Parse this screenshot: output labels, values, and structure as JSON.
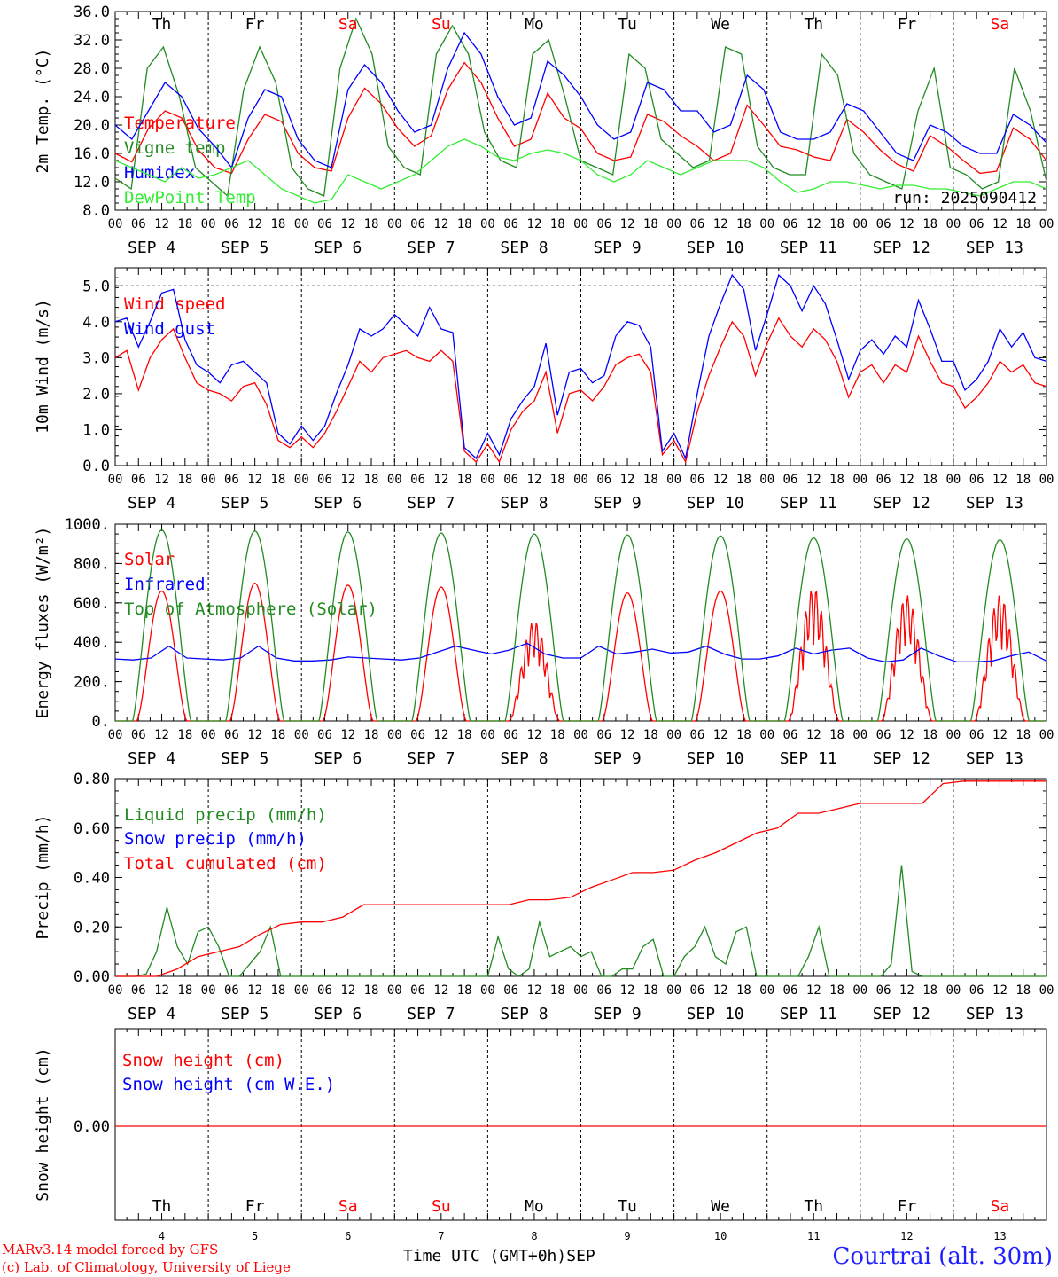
{
  "colors": {
    "temperature": "#ff0000",
    "vigne": "#228b22",
    "humidex": "#0000ff",
    "dewpoint": "#33ee33",
    "grid": "#000000"
  },
  "days": {
    "weekdays": [
      "Th",
      "Fr",
      "Sa",
      "Su",
      "Mo",
      "Tu",
      "We",
      "Th",
      "Fr",
      "Sa"
    ],
    "weekend_color": "#ff0000",
    "weekend_index": [
      2,
      3,
      9
    ],
    "dates": [
      "SEP  4",
      "SEP  5",
      "SEP  6",
      "SEP  7",
      "SEP  8",
      "SEP  9",
      "SEP 10",
      "SEP 11",
      "SEP 12",
      "SEP 13"
    ],
    "day_numbers": [
      "4",
      "5",
      "6",
      "7",
      "8",
      "9",
      "10",
      "11",
      "12",
      "13"
    ],
    "hour_ticks": [
      "00",
      "06",
      "12",
      "18"
    ],
    "last_tick": "00"
  },
  "chart_data": [
    {
      "type": "line",
      "ylabel": "2m Temp. (°C)",
      "ylim": [
        8,
        36
      ],
      "yticks": [
        "8.0",
        "12.0",
        "16.0",
        "20.0",
        "24.0",
        "28.0",
        "32.0",
        "36.0"
      ],
      "annotation": "run: 2025090412",
      "series": [
        {
          "name": "Temperature",
          "color": "#ff0000",
          "values": [
            16,
            14.8,
            19.5,
            22,
            21,
            16.5,
            14,
            13.2,
            18,
            21.5,
            20.5,
            16,
            14,
            13.5,
            21,
            25.2,
            23,
            19.5,
            17,
            18.5,
            25,
            28.8,
            26,
            21,
            17,
            18,
            24.5,
            21,
            19.5,
            16,
            15,
            15.5,
            21.5,
            20.5,
            18.5,
            17,
            15,
            16,
            22.8,
            20,
            17,
            16.5,
            15.5,
            15,
            20.8,
            19,
            16.5,
            14.5,
            13.5,
            18.5,
            17,
            15,
            13.2,
            13.5,
            19.6,
            18,
            15
          ]
        },
        {
          "name": "Vigne temp",
          "color": "#228b22",
          "values": [
            12.5,
            11,
            28,
            31,
            24,
            14,
            12,
            10,
            25,
            31,
            26,
            14,
            11,
            10,
            28,
            35,
            30,
            17,
            14,
            13,
            30,
            34,
            30,
            19,
            15,
            14,
            30,
            32,
            24,
            15,
            14,
            13,
            30,
            28,
            18,
            16,
            14,
            15,
            31,
            30,
            17,
            14,
            13,
            13,
            30,
            27,
            16,
            13,
            12,
            11,
            22,
            28,
            14,
            13,
            11,
            12,
            28,
            22,
            12
          ]
        },
        {
          "name": "Humidex",
          "color": "#0000ff",
          "values": [
            20,
            18,
            22,
            26,
            24,
            19.5,
            17,
            14,
            21,
            25,
            24,
            18,
            15,
            14,
            25,
            28.5,
            26,
            22,
            19,
            20,
            28,
            33,
            30,
            24,
            20,
            21,
            29,
            27,
            24,
            20,
            18,
            19,
            26,
            25,
            22,
            22,
            19,
            20,
            27,
            25,
            19,
            18,
            18,
            19,
            23,
            22,
            19,
            16,
            15,
            20,
            19,
            17,
            16,
            16,
            21.5,
            20,
            17.5
          ]
        },
        {
          "name": "DewPoint Temp",
          "color": "#33ee33",
          "values": [
            15,
            14,
            13,
            12,
            14,
            12.5,
            13,
            14,
            15,
            13,
            11,
            10,
            9,
            9.5,
            13,
            12,
            11,
            12,
            13,
            15,
            17,
            18,
            17,
            15.5,
            15,
            16,
            16.5,
            16,
            15,
            13,
            12,
            13,
            15,
            14,
            13,
            14,
            15,
            15,
            15,
            14,
            12,
            10.5,
            11,
            12,
            12,
            11.5,
            11,
            11.5,
            11.5,
            11,
            11,
            10.5,
            10,
            11,
            12,
            12,
            11
          ]
        }
      ]
    },
    {
      "type": "line",
      "ylabel": "10m Wind (m/s)",
      "ylim": [
        0,
        5.5
      ],
      "yticks": [
        "0.0",
        "1.0",
        "2.0",
        "3.0",
        "4.0",
        "5.0"
      ],
      "refline": 5.0,
      "series": [
        {
          "name": "Wind speed",
          "color": "#ff0000",
          "values": [
            3,
            3.2,
            2.1,
            3,
            3.5,
            3.8,
            3,
            2.3,
            2.1,
            2,
            1.8,
            2.2,
            2.3,
            1.7,
            0.7,
            0.5,
            0.8,
            0.5,
            0.9,
            1.5,
            2.2,
            2.9,
            2.6,
            3,
            3.1,
            3.2,
            3,
            2.9,
            3.2,
            2.9,
            0.4,
            0.1,
            0.6,
            0.1,
            1,
            1.5,
            1.8,
            2.6,
            0.9,
            2,
            2.1,
            1.8,
            2.2,
            2.8,
            3,
            3.1,
            2.6,
            0.3,
            0.7,
            0.1,
            1.5,
            2.5,
            3.3,
            4,
            3.6,
            2.5,
            3.4,
            4.1,
            3.6,
            3.3,
            3.8,
            3.5,
            2.9,
            1.9,
            2.6,
            2.8,
            2.3,
            2.8,
            2.6,
            3.6,
            2.9,
            2.3,
            2.2,
            1.6,
            1.9,
            2.3,
            2.9,
            2.6,
            2.8,
            2.3,
            2.2
          ]
        },
        {
          "name": "Wind gust",
          "color": "#0000ff",
          "values": [
            4,
            4.1,
            3.3,
            4,
            4.8,
            4.9,
            3.5,
            2.8,
            2.6,
            2.3,
            2.8,
            2.9,
            2.6,
            2.3,
            0.9,
            0.6,
            1.1,
            0.7,
            1.1,
            2,
            2.8,
            3.8,
            3.6,
            3.8,
            4.2,
            3.9,
            3.6,
            4.4,
            3.8,
            3.7,
            0.5,
            0.2,
            0.9,
            0.3,
            1.3,
            1.8,
            2.2,
            3.4,
            1.4,
            2.6,
            2.7,
            2.3,
            2.5,
            3.6,
            4,
            3.9,
            3.3,
            0.4,
            0.9,
            0.2,
            2,
            3.6,
            4.5,
            5.3,
            4.9,
            3.2,
            4.2,
            5.3,
            5,
            4.3,
            5,
            4.5,
            3.5,
            2.4,
            3.2,
            3.5,
            3.1,
            3.6,
            3.3,
            4.6,
            3.8,
            2.9,
            2.9,
            2.1,
            2.4,
            2.9,
            3.8,
            3.3,
            3.7,
            3,
            2.9
          ]
        }
      ]
    },
    {
      "type": "line",
      "ylabel": "Energy fluxes (W/m²)",
      "ylim": [
        0,
        1000
      ],
      "yticks": [
        "0.",
        "200.",
        "400.",
        "600.",
        "800.",
        "1000."
      ],
      "series": [
        {
          "name": "Solar",
          "color": "#ff0000",
          "daily_peak": [
            660,
            700,
            690,
            680,
            510,
            650,
            660,
            680,
            640,
            640
          ]
        },
        {
          "name": "Infrared",
          "color": "#0000ff",
          "values": [
            315,
            310,
            320,
            380,
            320,
            315,
            310,
            320,
            380,
            320,
            305,
            305,
            310,
            325,
            320,
            315,
            310,
            320,
            350,
            380,
            360,
            340,
            360,
            395,
            340,
            320,
            320,
            380,
            340,
            350,
            365,
            345,
            350,
            380,
            340,
            315,
            315,
            330,
            370,
            340,
            360,
            370,
            320,
            300,
            310,
            370,
            330,
            300,
            300,
            305,
            330,
            350,
            305
          ]
        },
        {
          "name": "Top of Atmosphere (Solar)",
          "color": "#228b22",
          "daily_peak": [
            970,
            965,
            960,
            955,
            950,
            945,
            940,
            930,
            925,
            920
          ]
        }
      ]
    },
    {
      "type": "line",
      "ylabel": "Precip (mm/h)",
      "ylim": [
        0,
        0.8
      ],
      "yticks": [
        "0.00",
        "0.20",
        "0.40",
        "0.60",
        "0.80"
      ],
      "series": [
        {
          "name": "Liquid precip (mm/h)",
          "color": "#228b22",
          "values": [
            0,
            0,
            0,
            0.01,
            0.1,
            0.28,
            0.12,
            0.05,
            0.18,
            0.2,
            0.12,
            0,
            0,
            0.05,
            0.1,
            0.2,
            0,
            0,
            0,
            0,
            0,
            0,
            0,
            0,
            0,
            0,
            0,
            0,
            0,
            0,
            0,
            0,
            0,
            0,
            0,
            0,
            0,
            0.16,
            0.03,
            0,
            0.03,
            0.22,
            0.08,
            0.1,
            0.12,
            0.08,
            0.1,
            0,
            0,
            0.03,
            0.03,
            0.12,
            0.15,
            0,
            0,
            0.08,
            0.12,
            0.2,
            0.08,
            0.05,
            0.18,
            0.2,
            0,
            0,
            0,
            0,
            0,
            0.08,
            0.2,
            0,
            0,
            0,
            0,
            0,
            0,
            0.05,
            0.45,
            0.02,
            0,
            0,
            0,
            0,
            0,
            0,
            0,
            0,
            0,
            0,
            0,
            0,
            0
          ]
        },
        {
          "name": "Snow precip (mm/h)",
          "color": "#0000ff",
          "values": [
            0
          ]
        },
        {
          "name": "Total cumulated (cm)",
          "color": "#ff0000",
          "values": [
            0,
            0,
            0,
            0.03,
            0.08,
            0.1,
            0.12,
            0.17,
            0.21,
            0.22,
            0.22,
            0.24,
            0.29,
            0.29,
            0.29,
            0.29,
            0.29,
            0.29,
            0.29,
            0.29,
            0.31,
            0.31,
            0.32,
            0.36,
            0.39,
            0.42,
            0.42,
            0.43,
            0.47,
            0.5,
            0.54,
            0.58,
            0.6,
            0.66,
            0.66,
            0.68,
            0.7,
            0.7,
            0.7,
            0.7,
            0.78,
            0.79,
            0.79,
            0.79,
            0.79,
            0.79
          ]
        }
      ]
    },
    {
      "type": "line",
      "ylabel": "Snow height (cm)",
      "yticks": [
        "0.00"
      ],
      "series": [
        {
          "name": "Snow height (cm)",
          "color": "#ff0000",
          "values": [
            0
          ]
        },
        {
          "name": "Snow height (cm W.E.)",
          "color": "#0000ff",
          "values": [
            0
          ]
        }
      ]
    }
  ],
  "footer": {
    "model": "MARv3.14 model forced by GFS",
    "copyright": "(c) Lab. of Climatology, University of Liege",
    "xlabel": "Time UTC (GMT+0h)",
    "month": "SEP",
    "station": "Courtrai (alt. 30m)"
  }
}
